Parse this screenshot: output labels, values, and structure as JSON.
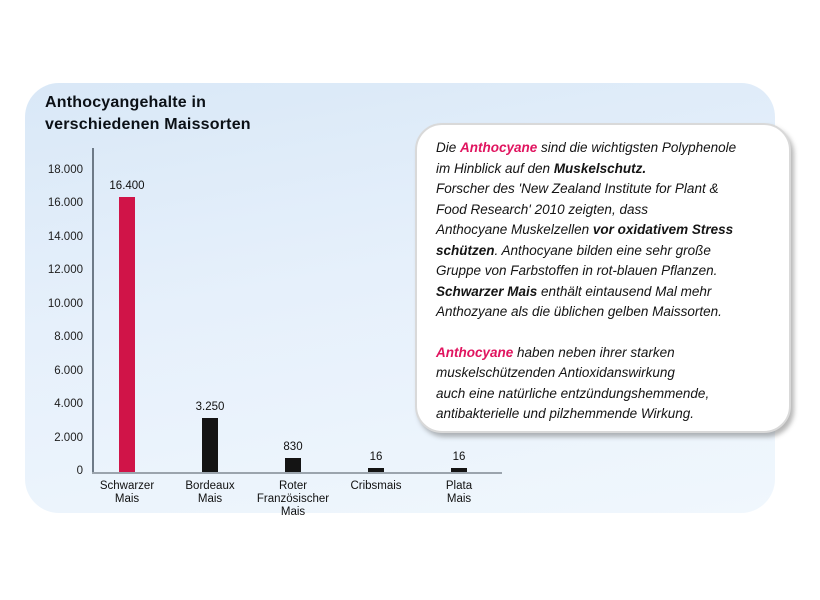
{
  "panel": {
    "title": "Anthocyangehalte in\nverschiedenen Maissorten",
    "background_top": "#d9e8f7",
    "background_bottom": "#f0f7fd"
  },
  "chart_data": {
    "type": "bar",
    "title": "Anthocyangehalte in verschiedenen Maissorten",
    "xlabel": "",
    "ylabel": "",
    "ylim": [
      0,
      18000
    ],
    "grid": false,
    "legend": null,
    "categories": [
      "Schwarzer Mais",
      "Bordeaux Mais",
      "Roter Französischer Mais",
      "Cribsmais",
      "Plata Mais"
    ],
    "category_labels": [
      "Schwarzer\nMais",
      "Bordeaux\nMais",
      "Roter\nFranzösischer\nMais",
      "Cribsmais",
      "Plata\nMais"
    ],
    "values": [
      16400,
      3250,
      830,
      16,
      16
    ],
    "value_labels": [
      "16.400",
      "3.250",
      "830",
      "16",
      "16"
    ],
    "bar_colors": [
      "#d01448",
      "#141414",
      "#141414",
      "#141414",
      "#141414"
    ],
    "ytick_labels": [
      "18.000",
      "16.000",
      "14.000",
      "12.000",
      "10.000",
      "8.000",
      "6.000",
      "4.000",
      "2.000",
      "0"
    ],
    "ytick_values": [
      18000,
      16000,
      14000,
      12000,
      10000,
      8000,
      6000,
      4000,
      2000,
      0
    ],
    "axis_color_y": "#6e7a87",
    "axis_color_x": "#9ba4ad"
  },
  "infobox": {
    "accent_color": "#e0145f",
    "paragraphs": [
      [
        {
          "t": "Die ",
          "s": "n"
        },
        {
          "t": "Anthocyane",
          "s": "p"
        },
        {
          "t": " sind die wichtigsten Polyphenole\nim Hinblick auf den ",
          "s": "n"
        },
        {
          "t": "Muskelschutz.",
          "s": "b"
        },
        {
          "t": "\nForscher des 'New Zealand Institute for Plant &\nFood Research' 2010 zeigten, dass\nAnthocyane Muskelzellen ",
          "s": "n"
        },
        {
          "t": "vor oxidativem Stress\nschützen",
          "s": "b"
        },
        {
          "t": ".  Anthocyane bilden eine sehr große\nGruppe von Farbstoffen in rot-blauen Pflanzen.\n",
          "s": "n"
        },
        {
          "t": "Schwarzer Mais",
          "s": "b"
        },
        {
          "t": "  enthält eintausend Mal mehr\nAnthozyane als die üblichen gelben Maissorten.",
          "s": "n"
        }
      ],
      [
        {
          "t": "Anthocyane",
          "s": "p"
        },
        {
          "t": " haben neben ihrer starken\nmuskelschützenden Antioxidanswirkung\nauch eine natürliche entzündungshemmende,\nantibakterielle und pilzhemmende Wirkung.",
          "s": "n"
        }
      ]
    ]
  }
}
